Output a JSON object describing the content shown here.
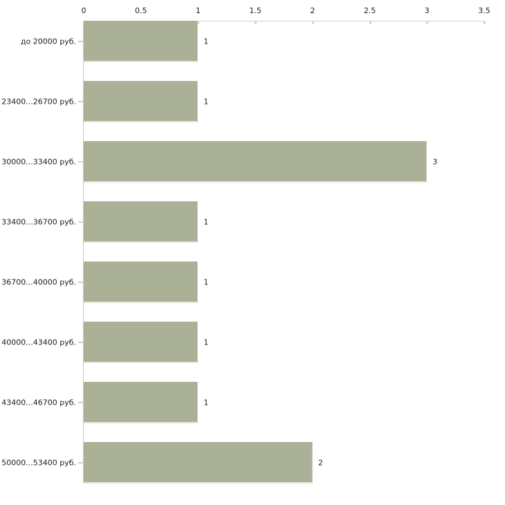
{
  "chart_data": {
    "type": "bar",
    "orientation": "horizontal",
    "title": "",
    "xlabel": "",
    "ylabel": "",
    "categories": [
      "до 20000 руб.",
      "23400...26700 руб.",
      "30000...33400 руб.",
      "33400...36700 руб.",
      "36700...40000 руб.",
      "40000...43400 руб.",
      "43400...46700 руб.",
      "50000...53400 руб."
    ],
    "values": [
      1,
      1,
      3,
      1,
      1,
      1,
      1,
      2
    ],
    "value_labels": [
      "1",
      "1",
      "3",
      "1",
      "1",
      "1",
      "1",
      "2"
    ],
    "xlim": [
      0,
      3.5
    ],
    "x_ticks": [
      0,
      0.5,
      1,
      1.5,
      2,
      2.5,
      3,
      3.5
    ],
    "x_tick_labels": [
      "0",
      "0.5",
      "1",
      "1.5",
      "2",
      "2.5",
      "3",
      "3.5"
    ],
    "grid": false,
    "legend": null,
    "colors": {
      "bar_fill": "#abb197",
      "bar_edge_light": "#e7e8dd",
      "axis_line": "#d3d3d3",
      "tick_mark": "#d9d9c3",
      "text": "#1c1c1c",
      "background": "#ffffff"
    }
  }
}
